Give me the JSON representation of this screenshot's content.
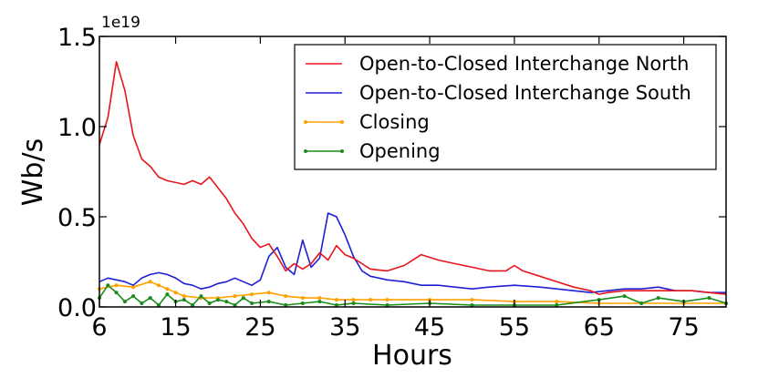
{
  "chart_data": {
    "type": "line",
    "xlabel": "Hours",
    "ylabel": "Wb/s",
    "y_offset_label": "1e19",
    "xlim": [
      6,
      80
    ],
    "ylim": [
      0,
      1.5
    ],
    "x_ticks": [
      6,
      15,
      25,
      35,
      45,
      55,
      65,
      75
    ],
    "x_tick_labels": [
      "6",
      "15",
      "25",
      "35",
      "45",
      "55",
      "65",
      "75"
    ],
    "y_ticks": [
      0.0,
      0.5,
      1.0,
      1.5
    ],
    "y_tick_labels": [
      "0.0",
      "0.5",
      "1.0",
      "1.5"
    ],
    "grid": false,
    "legend_position": "top-right",
    "series": [
      {
        "name": "Open-to-Closed Interchange North",
        "color": "#e8141c",
        "marker": "none",
        "x": [
          6,
          7,
          8,
          9,
          10,
          11,
          12,
          13,
          14,
          15,
          16,
          17,
          18,
          19,
          20,
          21,
          22,
          23,
          24,
          25,
          26,
          27,
          28,
          29,
          30,
          31,
          32,
          33,
          34,
          35,
          36,
          37,
          38,
          40,
          42,
          44,
          46,
          48,
          50,
          52,
          54,
          55,
          56,
          58,
          60,
          62,
          64,
          65,
          66,
          68,
          70,
          72,
          74,
          76,
          78,
          80
        ],
        "y": [
          0.9,
          1.05,
          1.36,
          1.2,
          0.95,
          0.82,
          0.78,
          0.72,
          0.7,
          0.69,
          0.68,
          0.7,
          0.68,
          0.72,
          0.66,
          0.6,
          0.52,
          0.46,
          0.38,
          0.33,
          0.35,
          0.28,
          0.2,
          0.24,
          0.21,
          0.24,
          0.3,
          0.26,
          0.34,
          0.29,
          0.27,
          0.24,
          0.21,
          0.2,
          0.23,
          0.29,
          0.26,
          0.24,
          0.22,
          0.2,
          0.2,
          0.23,
          0.2,
          0.17,
          0.14,
          0.11,
          0.09,
          0.07,
          0.08,
          0.09,
          0.09,
          0.09,
          0.09,
          0.09,
          0.08,
          0.07
        ]
      },
      {
        "name": "Open-to-Closed Interchange South",
        "color": "#1f1fd6",
        "marker": "none",
        "x": [
          6,
          7,
          8,
          9,
          10,
          11,
          12,
          13,
          14,
          15,
          16,
          17,
          18,
          19,
          20,
          21,
          22,
          23,
          24,
          25,
          26,
          27,
          28,
          29,
          30,
          31,
          32,
          33,
          34,
          35,
          36,
          37,
          38,
          40,
          42,
          44,
          46,
          48,
          50,
          52,
          55,
          58,
          60,
          62,
          64,
          66,
          68,
          70,
          72,
          74,
          76,
          78,
          80
        ],
        "y": [
          0.14,
          0.16,
          0.15,
          0.14,
          0.12,
          0.16,
          0.18,
          0.19,
          0.18,
          0.16,
          0.13,
          0.12,
          0.1,
          0.11,
          0.13,
          0.14,
          0.16,
          0.14,
          0.12,
          0.15,
          0.28,
          0.33,
          0.22,
          0.18,
          0.37,
          0.22,
          0.27,
          0.52,
          0.5,
          0.4,
          0.28,
          0.2,
          0.17,
          0.15,
          0.14,
          0.12,
          0.12,
          0.11,
          0.1,
          0.11,
          0.12,
          0.11,
          0.1,
          0.09,
          0.08,
          0.09,
          0.1,
          0.1,
          0.11,
          0.09,
          0.09,
          0.08,
          0.08
        ]
      },
      {
        "name": "Closing",
        "color": "#ffa000",
        "marker": "dot",
        "x": [
          6,
          8,
          10,
          12,
          13,
          14,
          15,
          16,
          18,
          20,
          22,
          24,
          26,
          28,
          30,
          32,
          34,
          36,
          38,
          40,
          45,
          50,
          55,
          60,
          65,
          70,
          75,
          80
        ],
        "y": [
          0.1,
          0.12,
          0.11,
          0.14,
          0.12,
          0.1,
          0.08,
          0.06,
          0.05,
          0.05,
          0.06,
          0.07,
          0.08,
          0.06,
          0.05,
          0.05,
          0.04,
          0.04,
          0.04,
          0.04,
          0.04,
          0.04,
          0.03,
          0.03,
          0.02,
          0.02,
          0.02,
          0.02
        ]
      },
      {
        "name": "Opening",
        "color": "#1a8c1a",
        "marker": "dot",
        "x": [
          6,
          7,
          8,
          9,
          10,
          11,
          12,
          13,
          14,
          15,
          16,
          17,
          18,
          19,
          20,
          21,
          22,
          23,
          24,
          26,
          28,
          30,
          32,
          34,
          36,
          40,
          45,
          50,
          55,
          60,
          65,
          68,
          70,
          72,
          75,
          78,
          80
        ],
        "y": [
          0.05,
          0.12,
          0.08,
          0.03,
          0.06,
          0.02,
          0.05,
          0.01,
          0.07,
          0.03,
          0.04,
          0.01,
          0.06,
          0.02,
          0.04,
          0.03,
          0.01,
          0.05,
          0.02,
          0.03,
          0.01,
          0.02,
          0.03,
          0.01,
          0.02,
          0.01,
          0.02,
          0.01,
          0.01,
          0.01,
          0.04,
          0.06,
          0.02,
          0.05,
          0.03,
          0.05,
          0.02
        ]
      }
    ]
  }
}
